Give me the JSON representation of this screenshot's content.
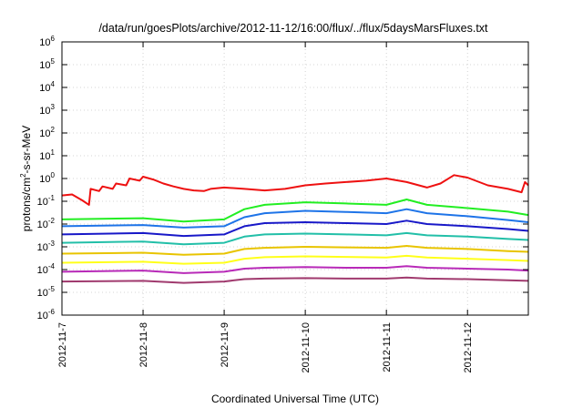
{
  "chart_data": {
    "type": "line",
    "title": "/data/run/goesPlots/archive/2012-11-12/16:00/flux/../flux/5daysMarsFluxes.txt",
    "xlabel": "Coordinated Universal Time (UTC)",
    "ylabel": "protons/cm2-s-sr-MeV",
    "ylabel_parts": {
      "pre": "protons/cm",
      "sup": "2",
      "post": "-s-sr-MeV"
    },
    "yscale": "log",
    "ylim_exp": [
      -6,
      6
    ],
    "y_ticks": [
      {
        "base": "10",
        "exp": "-6"
      },
      {
        "base": "10",
        "exp": "-5"
      },
      {
        "base": "10",
        "exp": "-4"
      },
      {
        "base": "10",
        "exp": "-3"
      },
      {
        "base": "10",
        "exp": "-2"
      },
      {
        "base": "10",
        "exp": "-1"
      },
      {
        "base": "10",
        "exp": "0"
      },
      {
        "base": "10",
        "exp": "1"
      },
      {
        "base": "10",
        "exp": "2"
      },
      {
        "base": "10",
        "exp": "3"
      },
      {
        "base": "10",
        "exp": "4"
      },
      {
        "base": "10",
        "exp": "5"
      },
      {
        "base": "10",
        "exp": "6"
      }
    ],
    "xlim": [
      "2012-11-07T00:00",
      "2012-11-12T18:00"
    ],
    "x_ticks": [
      "2012-11-7",
      "2012-11-8",
      "2012-11-9",
      "2012-11-10",
      "2012-11-11",
      "2012-11-12"
    ],
    "grid": true,
    "series": [
      {
        "color": "#ee1111",
        "width": 2.0,
        "points": [
          [
            "2012-11-07T00:00",
            0.18
          ],
          [
            "2012-11-07T03:00",
            0.2
          ],
          [
            "2012-11-07T06:00",
            0.11
          ],
          [
            "2012-11-07T08:00",
            0.07
          ],
          [
            "2012-11-07T08:30",
            0.35
          ],
          [
            "2012-11-07T11:00",
            0.28
          ],
          [
            "2012-11-07T12:00",
            0.45
          ],
          [
            "2012-11-07T15:00",
            0.35
          ],
          [
            "2012-11-07T16:00",
            0.6
          ],
          [
            "2012-11-07T19:00",
            0.5
          ],
          [
            "2012-11-07T20:00",
            1.0
          ],
          [
            "2012-11-07T23:00",
            0.8
          ],
          [
            "2012-11-08T00:00",
            1.2
          ],
          [
            "2012-11-08T03:00",
            0.9
          ],
          [
            "2012-11-08T06:00",
            0.6
          ],
          [
            "2012-11-08T09:00",
            0.45
          ],
          [
            "2012-11-08T12:00",
            0.35
          ],
          [
            "2012-11-08T15:00",
            0.3
          ],
          [
            "2012-11-08T18:00",
            0.28
          ],
          [
            "2012-11-08T20:00",
            0.35
          ],
          [
            "2012-11-09T00:00",
            0.4
          ],
          [
            "2012-11-09T06:00",
            0.35
          ],
          [
            "2012-11-09T12:00",
            0.3
          ],
          [
            "2012-11-09T18:00",
            0.35
          ],
          [
            "2012-11-10T00:00",
            0.5
          ],
          [
            "2012-11-10T06:00",
            0.6
          ],
          [
            "2012-11-10T12:00",
            0.7
          ],
          [
            "2012-11-10T18:00",
            0.8
          ],
          [
            "2012-11-11T00:00",
            1.0
          ],
          [
            "2012-11-11T06:00",
            0.7
          ],
          [
            "2012-11-11T12:00",
            0.4
          ],
          [
            "2012-11-11T16:00",
            0.6
          ],
          [
            "2012-11-11T20:00",
            1.4
          ],
          [
            "2012-11-12T00:00",
            1.1
          ],
          [
            "2012-11-12T06:00",
            0.5
          ],
          [
            "2012-11-12T12:00",
            0.35
          ],
          [
            "2012-11-12T16:00",
            0.25
          ],
          [
            "2012-11-12T17:00",
            0.7
          ],
          [
            "2012-11-12T18:00",
            0.5
          ]
        ]
      },
      {
        "color": "#22ee22",
        "width": 2.0,
        "points": [
          [
            "2012-11-07T00:00",
            0.016
          ],
          [
            "2012-11-08T00:00",
            0.018
          ],
          [
            "2012-11-08T12:00",
            0.013
          ],
          [
            "2012-11-09T00:00",
            0.016
          ],
          [
            "2012-11-09T06:00",
            0.045
          ],
          [
            "2012-11-09T12:00",
            0.07
          ],
          [
            "2012-11-10T00:00",
            0.09
          ],
          [
            "2012-11-10T12:00",
            0.08
          ],
          [
            "2012-11-11T00:00",
            0.07
          ],
          [
            "2012-11-11T06:00",
            0.12
          ],
          [
            "2012-11-11T12:00",
            0.07
          ],
          [
            "2012-11-12T00:00",
            0.05
          ],
          [
            "2012-11-12T12:00",
            0.035
          ],
          [
            "2012-11-12T18:00",
            0.025
          ]
        ]
      },
      {
        "color": "#1e74e8",
        "width": 2.0,
        "points": [
          [
            "2012-11-07T00:00",
            0.008
          ],
          [
            "2012-11-08T00:00",
            0.009
          ],
          [
            "2012-11-08T12:00",
            0.007
          ],
          [
            "2012-11-09T00:00",
            0.008
          ],
          [
            "2012-11-09T06:00",
            0.02
          ],
          [
            "2012-11-09T12:00",
            0.03
          ],
          [
            "2012-11-10T00:00",
            0.038
          ],
          [
            "2012-11-10T12:00",
            0.034
          ],
          [
            "2012-11-11T00:00",
            0.03
          ],
          [
            "2012-11-11T06:00",
            0.045
          ],
          [
            "2012-11-11T12:00",
            0.03
          ],
          [
            "2012-11-12T00:00",
            0.022
          ],
          [
            "2012-11-12T12:00",
            0.015
          ],
          [
            "2012-11-12T18:00",
            0.012
          ]
        ]
      },
      {
        "color": "#1818c8",
        "width": 2.0,
        "points": [
          [
            "2012-11-07T00:00",
            0.0035
          ],
          [
            "2012-11-08T00:00",
            0.004
          ],
          [
            "2012-11-08T12:00",
            0.003
          ],
          [
            "2012-11-09T00:00",
            0.0035
          ],
          [
            "2012-11-09T06:00",
            0.008
          ],
          [
            "2012-11-09T12:00",
            0.011
          ],
          [
            "2012-11-10T00:00",
            0.012
          ],
          [
            "2012-11-10T12:00",
            0.011
          ],
          [
            "2012-11-11T00:00",
            0.01
          ],
          [
            "2012-11-11T06:00",
            0.014
          ],
          [
            "2012-11-11T12:00",
            0.01
          ],
          [
            "2012-11-12T00:00",
            0.008
          ],
          [
            "2012-11-12T12:00",
            0.006
          ],
          [
            "2012-11-12T18:00",
            0.005
          ]
        ]
      },
      {
        "color": "#22bfa8",
        "width": 2.0,
        "points": [
          [
            "2012-11-07T00:00",
            0.0015
          ],
          [
            "2012-11-08T00:00",
            0.0017
          ],
          [
            "2012-11-08T12:00",
            0.0013
          ],
          [
            "2012-11-09T00:00",
            0.0015
          ],
          [
            "2012-11-09T06:00",
            0.0028
          ],
          [
            "2012-11-09T12:00",
            0.0035
          ],
          [
            "2012-11-10T00:00",
            0.0038
          ],
          [
            "2012-11-10T12:00",
            0.0035
          ],
          [
            "2012-11-11T00:00",
            0.0032
          ],
          [
            "2012-11-11T06:00",
            0.004
          ],
          [
            "2012-11-11T12:00",
            0.0032
          ],
          [
            "2012-11-12T00:00",
            0.0028
          ],
          [
            "2012-11-12T12:00",
            0.0022
          ],
          [
            "2012-11-12T18:00",
            0.002
          ]
        ]
      },
      {
        "color": "#e8c400",
        "width": 2.0,
        "points": [
          [
            "2012-11-07T00:00",
            0.0005
          ],
          [
            "2012-11-08T00:00",
            0.00055
          ],
          [
            "2012-11-08T12:00",
            0.00045
          ],
          [
            "2012-11-09T00:00",
            0.0005
          ],
          [
            "2012-11-09T06:00",
            0.0008
          ],
          [
            "2012-11-09T12:00",
            0.0009
          ],
          [
            "2012-11-10T00:00",
            0.001
          ],
          [
            "2012-11-10T12:00",
            0.00095
          ],
          [
            "2012-11-11T00:00",
            0.0009
          ],
          [
            "2012-11-11T06:00",
            0.0011
          ],
          [
            "2012-11-11T12:00",
            0.0009
          ],
          [
            "2012-11-12T00:00",
            0.0008
          ],
          [
            "2012-11-12T12:00",
            0.00065
          ],
          [
            "2012-11-12T18:00",
            0.0006
          ]
        ]
      },
      {
        "color": "#ffff1a",
        "width": 2.0,
        "points": [
          [
            "2012-11-07T00:00",
            0.0002
          ],
          [
            "2012-11-08T00:00",
            0.00022
          ],
          [
            "2012-11-08T12:00",
            0.00018
          ],
          [
            "2012-11-09T00:00",
            0.0002
          ],
          [
            "2012-11-09T06:00",
            0.0003
          ],
          [
            "2012-11-09T12:00",
            0.00035
          ],
          [
            "2012-11-10T00:00",
            0.00038
          ],
          [
            "2012-11-10T12:00",
            0.00036
          ],
          [
            "2012-11-11T00:00",
            0.00034
          ],
          [
            "2012-11-11T06:00",
            0.0004
          ],
          [
            "2012-11-11T12:00",
            0.00034
          ],
          [
            "2012-11-12T00:00",
            0.0003
          ],
          [
            "2012-11-12T12:00",
            0.00026
          ],
          [
            "2012-11-12T18:00",
            0.00024
          ]
        ]
      },
      {
        "color": "#b82ab8",
        "width": 2.0,
        "points": [
          [
            "2012-11-07T00:00",
            8e-05
          ],
          [
            "2012-11-08T00:00",
            9e-05
          ],
          [
            "2012-11-08T12:00",
            7e-05
          ],
          [
            "2012-11-09T00:00",
            8e-05
          ],
          [
            "2012-11-09T06:00",
            0.00011
          ],
          [
            "2012-11-09T12:00",
            0.00012
          ],
          [
            "2012-11-10T00:00",
            0.00013
          ],
          [
            "2012-11-10T12:00",
            0.00012
          ],
          [
            "2012-11-11T00:00",
            0.00012
          ],
          [
            "2012-11-11T06:00",
            0.00014
          ],
          [
            "2012-11-11T12:00",
            0.00012
          ],
          [
            "2012-11-12T00:00",
            0.00011
          ],
          [
            "2012-11-12T12:00",
            0.0001
          ],
          [
            "2012-11-12T18:00",
            9e-05
          ]
        ]
      },
      {
        "color": "#a03a6e",
        "width": 2.0,
        "points": [
          [
            "2012-11-07T00:00",
            3e-05
          ],
          [
            "2012-11-08T00:00",
            3.2e-05
          ],
          [
            "2012-11-08T12:00",
            2.6e-05
          ],
          [
            "2012-11-09T00:00",
            3e-05
          ],
          [
            "2012-11-09T06:00",
            3.8e-05
          ],
          [
            "2012-11-09T12:00",
            4e-05
          ],
          [
            "2012-11-10T00:00",
            4.2e-05
          ],
          [
            "2012-11-10T12:00",
            4e-05
          ],
          [
            "2012-11-11T00:00",
            4e-05
          ],
          [
            "2012-11-11T06:00",
            4.5e-05
          ],
          [
            "2012-11-11T12:00",
            4e-05
          ],
          [
            "2012-11-12T00:00",
            3.8e-05
          ],
          [
            "2012-11-12T12:00",
            3.4e-05
          ],
          [
            "2012-11-12T18:00",
            3.2e-05
          ]
        ]
      }
    ]
  }
}
